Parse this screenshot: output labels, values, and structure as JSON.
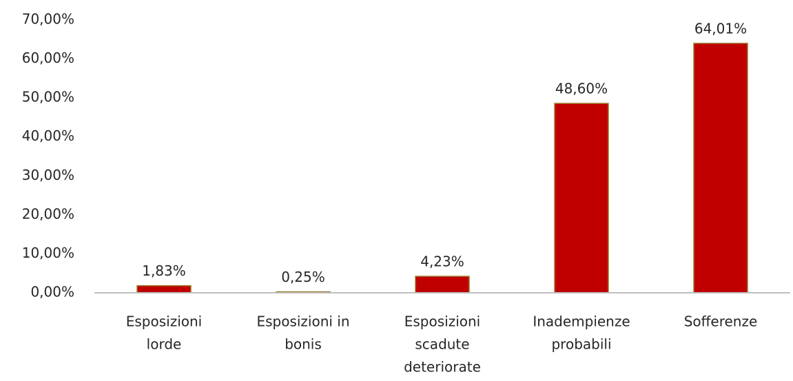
{
  "chart_data": {
    "type": "bar",
    "categories": [
      [
        "Esposizioni",
        "lorde"
      ],
      [
        "Esposizioni in",
        "bonis"
      ],
      [
        "Esposizioni",
        "scadute",
        "deteriorate"
      ],
      [
        "Inadempienze",
        "probabili"
      ],
      [
        "Sofferenze"
      ]
    ],
    "values": [
      1.83,
      0.25,
      4.23,
      48.6,
      64.01
    ],
    "value_labels": [
      "1,83%",
      "0,25%",
      "4,23%",
      "48,60%",
      "64,01%"
    ],
    "color": "#c00000",
    "ylim": [
      0,
      70
    ],
    "yticks": [
      {
        "value": 0,
        "label": "0,00%"
      },
      {
        "value": 10,
        "label": "10,00%"
      },
      {
        "value": 20,
        "label": "20,00%"
      },
      {
        "value": 30,
        "label": "30,00%"
      },
      {
        "value": 40,
        "label": "40,00%"
      },
      {
        "value": 50,
        "label": "50,00%"
      },
      {
        "value": 60,
        "label": "60,00%"
      },
      {
        "value": 70,
        "label": "70,00%"
      }
    ],
    "grid": false
  }
}
